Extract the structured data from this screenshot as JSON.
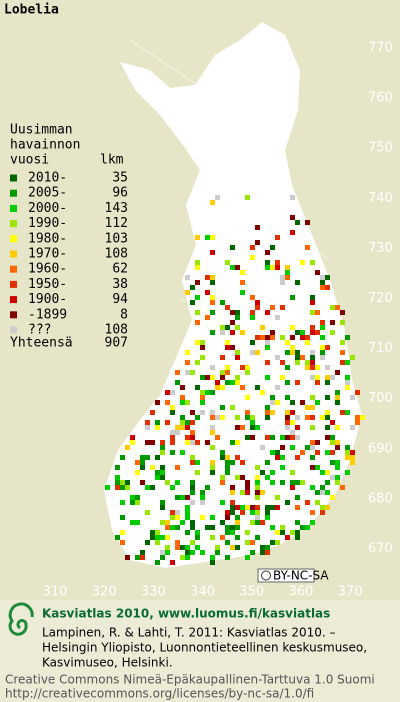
{
  "title": "Lobelia",
  "legend": {
    "heading": [
      "Uusimman",
      "havainnon",
      "vuosi"
    ],
    "count_heading": "lkm",
    "rows": [
      {
        "label": "2010-",
        "count": 35,
        "color": "#006600"
      },
      {
        "label": "2005-",
        "count": 96,
        "color": "#009900"
      },
      {
        "label": "2000-",
        "count": 143,
        "color": "#00cc00"
      },
      {
        "label": "1990-",
        "count": 112,
        "color": "#99e600"
      },
      {
        "label": "1980-",
        "count": 103,
        "color": "#ffff00"
      },
      {
        "label": "1970-",
        "count": 108,
        "color": "#ffcc00"
      },
      {
        "label": "1960-",
        "count": 62,
        "color": "#ff6600"
      },
      {
        "label": "1950-",
        "count": 38,
        "color": "#e03000"
      },
      {
        "label": "1900-",
        "count": 94,
        "color": "#cc0000"
      },
      {
        "label": "-1899",
        "count": 8,
        "color": "#800000"
      },
      {
        "label": "???",
        "count": 108,
        "color": "#cccccc"
      }
    ],
    "total_label": "Yhteensä",
    "total": 907
  },
  "y_ticks": [
    770,
    760,
    750,
    740,
    730,
    720,
    710,
    700,
    690,
    680,
    670
  ],
  "x_ticks": [
    310,
    320,
    330,
    340,
    350,
    360,
    370
  ],
  "license_badge": "BY-NC-SA",
  "footer": {
    "site": "Kasviatlas 2010, www.luomus.fi/kasviatlas",
    "citation": [
      "Lampinen, R. & Lahti, T. 2011: Kasviatlas 2010. –",
      "Helsingin Yliopisto, Luonnontieteellinen keskusmuseo,",
      "Kasvimuseo, Helsinki."
    ],
    "license": [
      "Creative Commons Nimeä-Epäkaupallinen-Tarttuva 1.0 Suomi",
      "http://creativecommons.org/licenses/by-nc-sa/1.0/fi"
    ]
  }
}
